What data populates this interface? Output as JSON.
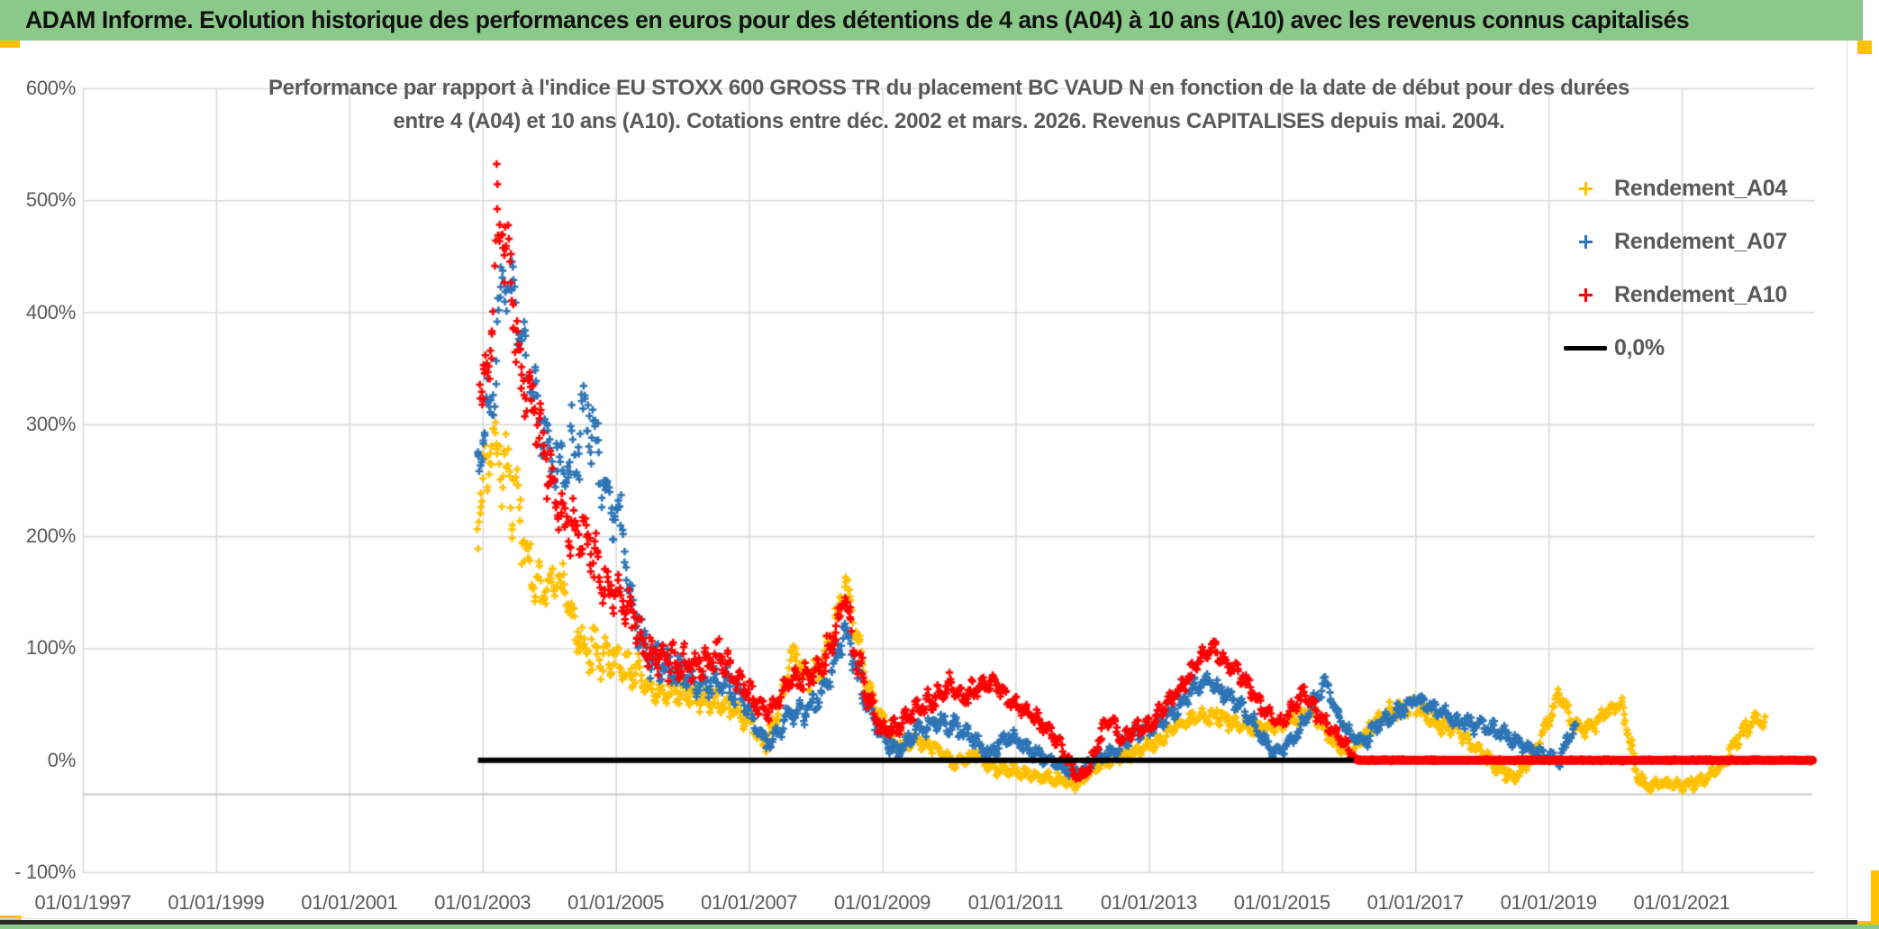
{
  "header": {
    "title": "ADAM Informe. Evolution historique des performances en euros pour des détentions de 4 ans (A04) à 10 ans (A10) avec les revenus connus capitalisés"
  },
  "chart_data": {
    "type": "scatter",
    "title_lines": [
      "Performance par rapport à l'indice EU STOXX 600 GROSS TR  du placement BC VAUD N en fonction de la date de début pour des durées",
      "entre 4 (A04) et 10 ans (A10). Cotations entre déc. 2002 et mars. 2026. Revenus CAPITALISES depuis mai. 2004."
    ],
    "x_axis": {
      "range_years": [
        1997,
        2023
      ],
      "tick_years": [
        1997,
        1999,
        2001,
        2003,
        2005,
        2007,
        2009,
        2011,
        2013,
        2015,
        2017,
        2019,
        2021
      ],
      "tick_labels": [
        "01/01/1997",
        "01/01/1999",
        "01/01/2001",
        "01/01/2003",
        "01/01/2005",
        "01/01/2007",
        "01/01/2009",
        "01/01/2011",
        "01/01/2013",
        "01/01/2015",
        "01/01/2017",
        "01/01/2019",
        "01/01/2021"
      ]
    },
    "y_axis": {
      "range_pct": [
        -100,
        600
      ],
      "tick_values": [
        600,
        500,
        400,
        300,
        200,
        100,
        0,
        -100
      ],
      "tick_labels": [
        "600%",
        "500%",
        "400%",
        "300%",
        "200%",
        "100%",
        "0%",
        "- 100%"
      ],
      "gridline_values": [
        600,
        500,
        400,
        300,
        200,
        100,
        -100
      ],
      "extra_gridline_value": -30.4,
      "grid_color": "#D9D9D9"
    },
    "legend": {
      "items": [
        {
          "label": "Rendement_A04",
          "color": "#FFC000",
          "marker": "plus"
        },
        {
          "label": "Rendement_A07",
          "color": "#2E75B6",
          "marker": "plus"
        },
        {
          "label": "Rendement_A10",
          "color": "#FF0000",
          "marker": "plus"
        },
        {
          "label": "0,0%",
          "color": "#000000",
          "marker": "line"
        }
      ]
    },
    "series": [
      {
        "name": "Rendement_A04",
        "color": "#FFC000",
        "marker": "plus",
        "seed": 11,
        "trend": [
          [
            2002.92,
            215,
            30
          ],
          [
            2003.12,
            280,
            45
          ],
          [
            2003.3,
            270,
            45
          ],
          [
            2003.5,
            235,
            45
          ],
          [
            2003.7,
            170,
            30
          ],
          [
            2003.9,
            150,
            25
          ],
          [
            2004.1,
            165,
            25
          ],
          [
            2004.25,
            150,
            28
          ],
          [
            2004.5,
            100,
            25
          ],
          [
            2004.8,
            95,
            25
          ],
          [
            2005.0,
            90,
            25
          ],
          [
            2005.3,
            80,
            22
          ],
          [
            2005.6,
            62,
            15
          ],
          [
            2005.9,
            62,
            15
          ],
          [
            2006.2,
            58,
            15
          ],
          [
            2006.5,
            52,
            15
          ],
          [
            2006.8,
            45,
            12
          ],
          [
            2007.0,
            35,
            12
          ],
          [
            2007.25,
            12,
            8
          ],
          [
            2007.5,
            55,
            12
          ],
          [
            2007.65,
            95,
            12
          ],
          [
            2007.9,
            75,
            15
          ],
          [
            2008.1,
            85,
            15
          ],
          [
            2008.3,
            120,
            15
          ],
          [
            2008.45,
            160,
            10
          ],
          [
            2008.6,
            112,
            20
          ],
          [
            2008.8,
            62,
            15
          ],
          [
            2009.0,
            35,
            12
          ],
          [
            2009.2,
            12,
            8
          ],
          [
            2009.5,
            18,
            8
          ],
          [
            2009.8,
            12,
            8
          ],
          [
            2010.1,
            -4,
            6
          ],
          [
            2010.4,
            6,
            7
          ],
          [
            2010.7,
            -8,
            6
          ],
          [
            2011.0,
            -10,
            6
          ],
          [
            2011.3,
            -14,
            6
          ],
          [
            2011.6,
            -17,
            6
          ],
          [
            2011.95,
            -21,
            6
          ],
          [
            2012.2,
            -5,
            6
          ],
          [
            2012.5,
            2,
            6
          ],
          [
            2012.8,
            8,
            6
          ],
          [
            2013.1,
            15,
            7
          ],
          [
            2013.4,
            30,
            8
          ],
          [
            2013.7,
            38,
            8
          ],
          [
            2014.0,
            40,
            8
          ],
          [
            2014.3,
            32,
            8
          ],
          [
            2014.6,
            28,
            8
          ],
          [
            2014.9,
            30,
            8
          ],
          [
            2015.2,
            38,
            8
          ],
          [
            2015.45,
            44,
            8
          ],
          [
            2015.7,
            22,
            8
          ],
          [
            2015.95,
            5,
            7
          ],
          [
            2016.1,
            12,
            8
          ],
          [
            2016.4,
            35,
            9
          ],
          [
            2016.7,
            45,
            9
          ],
          [
            2017.0,
            50,
            9
          ],
          [
            2017.3,
            32,
            8
          ],
          [
            2017.6,
            28,
            8
          ],
          [
            2017.9,
            12,
            8
          ],
          [
            2018.2,
            -5,
            7
          ],
          [
            2018.5,
            -16,
            6
          ],
          [
            2018.75,
            2,
            8
          ],
          [
            2019.0,
            35,
            9
          ],
          [
            2019.15,
            60,
            7
          ],
          [
            2019.4,
            30,
            8
          ],
          [
            2019.6,
            28,
            8
          ],
          [
            2019.9,
            45,
            8
          ],
          [
            2020.1,
            50,
            8
          ],
          [
            2020.3,
            -5,
            14
          ],
          [
            2020.45,
            -24,
            7
          ],
          [
            2020.7,
            -20,
            6
          ],
          [
            2021.0,
            -23,
            6
          ],
          [
            2021.3,
            -18,
            6
          ],
          [
            2021.6,
            -5,
            7
          ],
          [
            2021.9,
            25,
            8
          ],
          [
            2022.1,
            36,
            8
          ],
          [
            2022.25,
            32,
            7
          ]
        ]
      },
      {
        "name": "Rendement_A07",
        "color": "#2E75B6",
        "marker": "plus",
        "seed": 22,
        "trend": [
          [
            2002.92,
            265,
            25
          ],
          [
            2003.15,
            330,
            40
          ],
          [
            2003.3,
            435,
            25
          ],
          [
            2003.45,
            420,
            30
          ],
          [
            2003.6,
            370,
            25
          ],
          [
            2003.8,
            320,
            30
          ],
          [
            2004.0,
            280,
            30
          ],
          [
            2004.2,
            255,
            30
          ],
          [
            2004.5,
            300,
            55
          ],
          [
            2004.62,
            310,
            55
          ],
          [
            2004.78,
            250,
            35
          ],
          [
            2004.92,
            225,
            30
          ],
          [
            2005.1,
            210,
            30
          ],
          [
            2005.25,
            130,
            20
          ],
          [
            2005.5,
            95,
            20
          ],
          [
            2005.75,
            85,
            18
          ],
          [
            2006.0,
            75,
            18
          ],
          [
            2006.3,
            65,
            15
          ],
          [
            2006.6,
            70,
            15
          ],
          [
            2006.9,
            55,
            15
          ],
          [
            2007.15,
            25,
            10
          ],
          [
            2007.3,
            15,
            8
          ],
          [
            2007.6,
            40,
            12
          ],
          [
            2007.9,
            45,
            12
          ],
          [
            2008.1,
            60,
            15
          ],
          [
            2008.3,
            90,
            15
          ],
          [
            2008.45,
            120,
            10
          ],
          [
            2008.6,
            80,
            15
          ],
          [
            2008.8,
            45,
            12
          ],
          [
            2009.0,
            20,
            10
          ],
          [
            2009.25,
            8,
            8
          ],
          [
            2009.5,
            25,
            8
          ],
          [
            2009.8,
            35,
            10
          ],
          [
            2010.1,
            30,
            10
          ],
          [
            2010.4,
            18,
            8
          ],
          [
            2010.6,
            5,
            7
          ],
          [
            2010.9,
            22,
            8
          ],
          [
            2011.2,
            10,
            8
          ],
          [
            2011.5,
            0,
            7
          ],
          [
            2011.75,
            -8,
            6
          ],
          [
            2011.95,
            -12,
            6
          ],
          [
            2012.2,
            2,
            7
          ],
          [
            2012.5,
            8,
            7
          ],
          [
            2012.8,
            25,
            8
          ],
          [
            2013.1,
            30,
            8
          ],
          [
            2013.4,
            45,
            9
          ],
          [
            2013.7,
            65,
            9
          ],
          [
            2013.9,
            72,
            8
          ],
          [
            2014.1,
            60,
            9
          ],
          [
            2014.4,
            48,
            9
          ],
          [
            2014.65,
            25,
            8
          ],
          [
            2014.9,
            6,
            6
          ],
          [
            2015.1,
            15,
            8
          ],
          [
            2015.3,
            30,
            8
          ],
          [
            2015.5,
            55,
            9
          ],
          [
            2015.65,
            70,
            7
          ],
          [
            2015.8,
            45,
            9
          ],
          [
            2016.0,
            25,
            8
          ],
          [
            2016.2,
            15,
            8
          ],
          [
            2016.5,
            35,
            9
          ],
          [
            2016.8,
            45,
            9
          ],
          [
            2017.0,
            55,
            8
          ],
          [
            2017.3,
            45,
            8
          ],
          [
            2017.6,
            35,
            8
          ],
          [
            2017.9,
            32,
            8
          ],
          [
            2018.2,
            28,
            8
          ],
          [
            2018.5,
            18,
            8
          ],
          [
            2018.75,
            8,
            7
          ],
          [
            2019.0,
            5,
            7
          ],
          [
            2019.15,
            -2,
            5
          ],
          [
            2019.3,
            20,
            8
          ],
          [
            2019.42,
            32,
            6
          ]
        ]
      },
      {
        "name": "Rendement_A10",
        "color": "#FF0000",
        "marker": "plus",
        "seed": 33,
        "flat_zero_from": 2016.14,
        "flat_zero_to": 2022.96,
        "trend": [
          [
            2002.95,
            340,
            28
          ],
          [
            2003.1,
            340,
            28
          ],
          [
            2003.2,
            480,
            60
          ],
          [
            2003.3,
            470,
            40
          ],
          [
            2003.42,
            435,
            35
          ],
          [
            2003.55,
            345,
            35
          ],
          [
            2003.7,
            330,
            30
          ],
          [
            2003.85,
            300,
            30
          ],
          [
            2004.0,
            255,
            30
          ],
          [
            2004.2,
            215,
            30
          ],
          [
            2004.4,
            205,
            30
          ],
          [
            2004.6,
            190,
            30
          ],
          [
            2004.8,
            160,
            25
          ],
          [
            2005.0,
            150,
            25
          ],
          [
            2005.2,
            135,
            25
          ],
          [
            2005.45,
            95,
            18
          ],
          [
            2005.7,
            90,
            18
          ],
          [
            2006.0,
            85,
            18
          ],
          [
            2006.3,
            85,
            18
          ],
          [
            2006.55,
            95,
            15
          ],
          [
            2006.8,
            75,
            15
          ],
          [
            2007.1,
            50,
            12
          ],
          [
            2007.3,
            42,
            10
          ],
          [
            2007.6,
            70,
            12
          ],
          [
            2007.9,
            75,
            12
          ],
          [
            2008.1,
            85,
            15
          ],
          [
            2008.3,
            115,
            15
          ],
          [
            2008.45,
            148,
            10
          ],
          [
            2008.6,
            95,
            18
          ],
          [
            2008.8,
            55,
            15
          ],
          [
            2009.0,
            25,
            10
          ],
          [
            2009.25,
            30,
            10
          ],
          [
            2009.5,
            45,
            10
          ],
          [
            2009.8,
            55,
            12
          ],
          [
            2010.0,
            68,
            10
          ],
          [
            2010.2,
            55,
            10
          ],
          [
            2010.45,
            65,
            10
          ],
          [
            2010.65,
            72,
            10
          ],
          [
            2010.9,
            55,
            10
          ],
          [
            2011.2,
            42,
            10
          ],
          [
            2011.5,
            28,
            10
          ],
          [
            2011.75,
            5,
            8
          ],
          [
            2011.95,
            -17,
            6
          ],
          [
            2012.1,
            -8,
            7
          ],
          [
            2012.3,
            25,
            9
          ],
          [
            2012.45,
            38,
            8
          ],
          [
            2012.6,
            18,
            8
          ],
          [
            2012.8,
            28,
            8
          ],
          [
            2013.0,
            30,
            8
          ],
          [
            2013.2,
            45,
            9
          ],
          [
            2013.5,
            65,
            9
          ],
          [
            2013.75,
            90,
            9
          ],
          [
            2013.95,
            102,
            8
          ],
          [
            2014.15,
            88,
            9
          ],
          [
            2014.4,
            75,
            9
          ],
          [
            2014.6,
            55,
            9
          ],
          [
            2014.8,
            40,
            9
          ],
          [
            2015.0,
            32,
            8
          ],
          [
            2015.2,
            50,
            8
          ],
          [
            2015.35,
            60,
            8
          ],
          [
            2015.55,
            40,
            8
          ],
          [
            2015.75,
            28,
            8
          ],
          [
            2015.95,
            15,
            7
          ],
          [
            2016.1,
            2,
            4
          ]
        ]
      },
      {
        "name": "0,0%",
        "color": "#000000",
        "marker": "line",
        "line": [
          [
            2002.93,
            0
          ],
          [
            2022.96,
            0
          ]
        ]
      }
    ]
  },
  "frame": {
    "accent_color": "#FFC000",
    "header_green": "#8BC98B"
  }
}
